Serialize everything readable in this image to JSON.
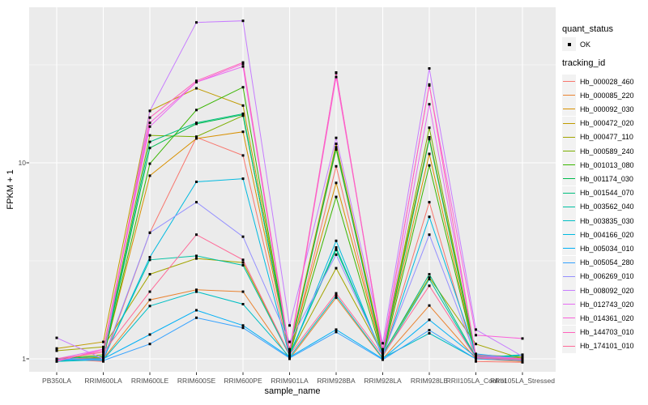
{
  "colors": {
    "page_background": "#FFFFFF",
    "panel_background": "#EBEBEB",
    "gridline": "#FFFFFF",
    "point": "#000000",
    "tick_mark": "#333333",
    "tick_label": "#4D4D4D"
  },
  "chart_data": {
    "type": "line",
    "title": "",
    "xlabel": "sample_name",
    "ylabel": "FPKM + 1",
    "y_scale": "log10",
    "y_ticks": [
      1,
      10
    ],
    "y_minor_breaks": [
      3.162,
      31.62
    ],
    "ylim": [
      0.93,
      62
    ],
    "grid": "on",
    "legend_position": "right",
    "point_shape": "filled-square",
    "point_color": "#000000",
    "categories": [
      "PB350LA",
      "RRIM600LA",
      "RRIM600LE",
      "RRIM600SE",
      "RRIM600PE",
      "RRIM901LA",
      "RRIM928BA",
      "RRIM928LA",
      "RRIM928LE",
      "RRII105LA_Control",
      "RRII105LA_Stressed"
    ],
    "legend": {
      "quant_status_title": "quant_status",
      "quant_status_items": [
        {
          "label": "OK"
        }
      ],
      "tracking_id_title": "tracking_id"
    },
    "series": [
      {
        "name": "Hb_000028_460",
        "color": "#F8766D",
        "values": [
          1.0,
          0.97,
          4.4,
          13.5,
          10.9,
          1.05,
          9.6,
          1.03,
          6.3,
          0.97,
          0.96
        ]
      },
      {
        "name": "Hb_000085_220",
        "color": "#EA8331",
        "values": [
          0.98,
          1.0,
          2.0,
          2.25,
          2.2,
          1.0,
          2.05,
          1.0,
          1.87,
          1.0,
          0.97
        ]
      },
      {
        "name": "Hb_000092_030",
        "color": "#D89000",
        "values": [
          0.99,
          1.02,
          8.6,
          13.3,
          14.4,
          1.08,
          7.9,
          1.05,
          11.1,
          1.02,
          1.0
        ]
      },
      {
        "name": "Hb_000472_020",
        "color": "#C09B00",
        "values": [
          1.13,
          1.22,
          18.4,
          24.0,
          19.6,
          1.12,
          12.5,
          1.1,
          13.5,
          1.05,
          1.02
        ]
      },
      {
        "name": "Hb_000477_110",
        "color": "#A3A500",
        "values": [
          1.1,
          1.15,
          2.7,
          3.25,
          3.1,
          1.05,
          2.9,
          1.06,
          2.6,
          1.19,
          1.0
        ]
      },
      {
        "name": "Hb_000589_240",
        "color": "#7CAE00",
        "values": [
          1.0,
          1.05,
          13.8,
          13.6,
          17.4,
          1.1,
          11.7,
          1.08,
          15.1,
          1.04,
          1.01
        ]
      },
      {
        "name": "Hb_001013_080",
        "color": "#39B600",
        "values": [
          0.98,
          1.0,
          9.9,
          18.6,
          24.3,
          1.05,
          6.7,
          1.02,
          9.7,
          1.01,
          1.04
        ]
      },
      {
        "name": "Hb_001174_030",
        "color": "#00BB4E",
        "values": [
          0.99,
          1.01,
          11.9,
          15.8,
          17.6,
          1.08,
          12.0,
          1.04,
          13.2,
          1.03,
          1.0
        ]
      },
      {
        "name": "Hb_001544_070",
        "color": "#00BF7D",
        "values": [
          1.0,
          1.03,
          12.8,
          16.0,
          17.8,
          1.06,
          3.6,
          1.05,
          2.7,
          1.02,
          1.04
        ]
      },
      {
        "name": "Hb_003562_040",
        "color": "#00C1A3",
        "values": [
          1.0,
          1.0,
          3.2,
          3.35,
          3.0,
          1.04,
          3.7,
          1.03,
          2.55,
          1.01,
          1.05
        ]
      },
      {
        "name": "Hb_003835_030",
        "color": "#00BFC4",
        "values": [
          0.97,
          0.99,
          1.86,
          2.2,
          1.9,
          1.02,
          2.1,
          1.01,
          1.35,
          1.0,
          1.04
        ]
      },
      {
        "name": "Hb_004166_020",
        "color": "#00BAE0",
        "values": [
          0.98,
          1.0,
          3.3,
          8.0,
          8.3,
          1.03,
          4.0,
          1.02,
          5.3,
          1.06,
          1.0
        ]
      },
      {
        "name": "Hb_005034_010",
        "color": "#00B0F6",
        "values": [
          0.99,
          1.0,
          1.33,
          1.77,
          1.48,
          1.02,
          1.41,
          1.0,
          1.58,
          1.02,
          0.99
        ]
      },
      {
        "name": "Hb_005054_280",
        "color": "#35A2FF",
        "values": [
          1.0,
          0.98,
          1.19,
          1.62,
          1.44,
          1.01,
          1.37,
          0.99,
          1.4,
          1.0,
          0.98
        ]
      },
      {
        "name": "Hb_006269_010",
        "color": "#9590FF",
        "values": [
          1.0,
          1.0,
          4.4,
          6.3,
          4.2,
          1.22,
          3.4,
          1.05,
          4.3,
          1.03,
          1.0
        ]
      },
      {
        "name": "Hb_008092_020",
        "color": "#C77CFF",
        "values": [
          1.28,
          1.0,
          18.4,
          52.0,
          53.0,
          1.48,
          13.4,
          1.2,
          30.3,
          1.41,
          1.03
        ]
      },
      {
        "name": "Hb_012743_020",
        "color": "#E76BF3",
        "values": [
          1.0,
          1.12,
          15.3,
          25.8,
          31.0,
          1.06,
          28.9,
          1.06,
          19.9,
          1.05,
          1.0
        ]
      },
      {
        "name": "Hb_014361_020",
        "color": "#FA62DB",
        "values": [
          0.97,
          1.12,
          16.0,
          25.8,
          32.0,
          1.08,
          27.4,
          1.12,
          24.8,
          1.32,
          1.27
        ]
      },
      {
        "name": "Hb_144703_010",
        "color": "#FF62BC",
        "values": [
          0.98,
          1.1,
          17.0,
          26.2,
          32.5,
          1.1,
          28.7,
          1.1,
          25.1,
          1.02,
          1.0
        ]
      },
      {
        "name": "Hb_174101_010",
        "color": "#FF6A98",
        "values": [
          1.0,
          1.08,
          2.2,
          4.3,
          3.2,
          1.05,
          2.16,
          1.04,
          2.36,
          1.01,
          0.99
        ]
      }
    ]
  }
}
